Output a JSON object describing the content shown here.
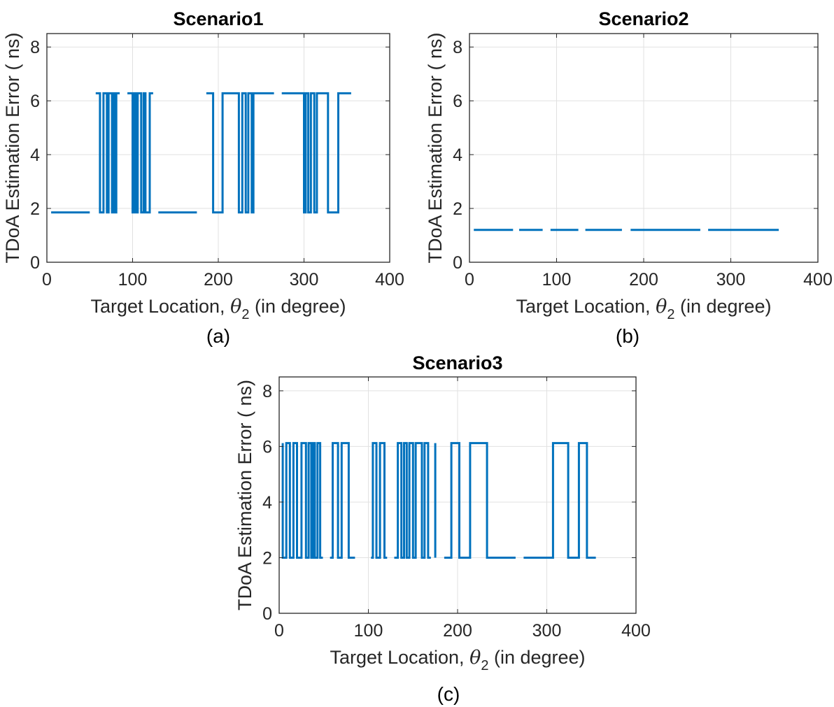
{
  "chart_data": [
    {
      "type": "line",
      "title": "Scenario1",
      "xlabel_prefix": "Target Location, ",
      "xlabel_symbol": "θ",
      "xlabel_subscript": "2",
      "xlabel_suffix": " (in degree)",
      "ylabel": "TDoA Estimation Error ( ns)",
      "panel_label": "(a)",
      "xlim": [
        0,
        400
      ],
      "ylim": [
        0,
        8.5
      ],
      "xticks": [
        0,
        100,
        200,
        300,
        400
      ],
      "yticks": [
        0,
        2,
        4,
        6,
        8
      ],
      "grid": true,
      "series": [
        {
          "color": "#0072BD",
          "segments": [
            [
              [
                5,
                1.85
              ],
              [
                50,
                1.85
              ]
            ],
            [
              [
                57,
                6.28
              ],
              [
                62,
                6.28
              ],
              [
                62,
                1.85
              ],
              [
                66,
                1.85
              ],
              [
                66,
                6.28
              ],
              [
                70,
                6.28
              ],
              [
                70,
                1.85
              ],
              [
                72,
                1.85
              ],
              [
                72,
                6.28
              ],
              [
                76,
                6.28
              ],
              [
                76,
                1.85
              ],
              [
                78,
                1.85
              ],
              [
                78,
                6.28
              ],
              [
                80,
                6.28
              ],
              [
                80,
                1.85
              ],
              [
                81,
                1.85
              ],
              [
                81,
                6.28
              ],
              [
                85,
                6.28
              ]
            ],
            [
              [
                94,
                6.28
              ],
              [
                100,
                6.28
              ],
              [
                100,
                1.85
              ],
              [
                102,
                1.85
              ],
              [
                102,
                6.28
              ],
              [
                104,
                6.28
              ],
              [
                104,
                1.85
              ],
              [
                106,
                1.85
              ],
              [
                106,
                6.28
              ],
              [
                110,
                6.28
              ],
              [
                110,
                1.85
              ],
              [
                113,
                1.85
              ],
              [
                113,
                6.28
              ],
              [
                115,
                6.28
              ],
              [
                115,
                1.85
              ],
              [
                120,
                1.85
              ],
              [
                120,
                6.28
              ],
              [
                124,
                6.28
              ]
            ],
            [
              [
                130,
                1.85
              ],
              [
                175,
                1.85
              ]
            ],
            [
              [
                186,
                6.28
              ],
              [
                194,
                6.28
              ],
              [
                194,
                1.85
              ],
              [
                205,
                1.85
              ],
              [
                205,
                6.28
              ],
              [
                224,
                6.28
              ],
              [
                224,
                1.85
              ],
              [
                228,
                1.85
              ],
              [
                228,
                6.28
              ],
              [
                232,
                6.28
              ],
              [
                232,
                1.85
              ],
              [
                235,
                1.85
              ],
              [
                235,
                6.28
              ],
              [
                239,
                6.28
              ],
              [
                239,
                1.85
              ],
              [
                241,
                1.85
              ],
              [
                241,
                6.28
              ],
              [
                265,
                6.28
              ]
            ],
            [
              [
                274,
                6.28
              ],
              [
                300,
                6.28
              ],
              [
                300,
                1.85
              ],
              [
                302,
                1.85
              ],
              [
                302,
                6.28
              ],
              [
                305,
                6.28
              ],
              [
                305,
                1.85
              ],
              [
                308,
                1.85
              ],
              [
                308,
                6.28
              ],
              [
                312,
                6.28
              ],
              [
                312,
                1.85
              ],
              [
                315,
                1.85
              ],
              [
                315,
                6.28
              ],
              [
                328,
                6.28
              ],
              [
                328,
                1.85
              ],
              [
                340,
                1.85
              ],
              [
                340,
                6.28
              ],
              [
                355,
                6.28
              ]
            ]
          ]
        }
      ]
    },
    {
      "type": "line",
      "title": "Scenario2",
      "xlabel_prefix": "Target Location, ",
      "xlabel_symbol": "θ",
      "xlabel_subscript": "2",
      "xlabel_suffix": " (in degree)",
      "ylabel": "TDoA Estimation Error ( ns)",
      "panel_label": "(b)",
      "xlim": [
        0,
        400
      ],
      "ylim": [
        0,
        8.5
      ],
      "xticks": [
        0,
        100,
        200,
        300,
        400
      ],
      "yticks": [
        0,
        2,
        4,
        6,
        8
      ],
      "grid": true,
      "series": [
        {
          "color": "#0072BD",
          "segments": [
            [
              [
                5,
                1.2
              ],
              [
                50,
                1.2
              ]
            ],
            [
              [
                57,
                1.2
              ],
              [
                84,
                1.2
              ]
            ],
            [
              [
                93,
                1.2
              ],
              [
                125,
                1.2
              ]
            ],
            [
              [
                133,
                1.2
              ],
              [
                175,
                1.2
              ]
            ],
            [
              [
                185,
                1.2
              ],
              [
                265,
                1.2
              ]
            ],
            [
              [
                274,
                1.2
              ],
              [
                355,
                1.2
              ]
            ]
          ]
        }
      ]
    },
    {
      "type": "line",
      "title": "Scenario3",
      "xlabel_prefix": "Target Location, ",
      "xlabel_symbol": "θ",
      "xlabel_subscript": "2",
      "xlabel_suffix": " (in degree)",
      "ylabel": "TDoA Estimation Error ( ns)",
      "panel_label": "(c)",
      "xlim": [
        0,
        400
      ],
      "ylim": [
        0,
        8.5
      ],
      "xticks": [
        0,
        100,
        200,
        300,
        400
      ],
      "yticks": [
        0,
        2,
        4,
        6,
        8
      ],
      "grid": true,
      "series": [
        {
          "color": "#0072BD",
          "segments": [
            [
              [
                4,
                6.12
              ],
              [
                4,
                2
              ],
              [
                8,
                2
              ],
              [
                8,
                6.12
              ],
              [
                12,
                6.12
              ],
              [
                12,
                2
              ],
              [
                16,
                2
              ],
              [
                16,
                6.12
              ],
              [
                20,
                6.12
              ],
              [
                20,
                2
              ],
              [
                25,
                2
              ],
              [
                25,
                6.12
              ],
              [
                30,
                6.12
              ],
              [
                30,
                2
              ],
              [
                33,
                2
              ],
              [
                33,
                6.12
              ],
              [
                36,
                6.12
              ],
              [
                36,
                2
              ],
              [
                38,
                2
              ],
              [
                38,
                6.12
              ],
              [
                40,
                6.12
              ],
              [
                40,
                2
              ],
              [
                43,
                2
              ],
              [
                43,
                6.12
              ],
              [
                46,
                6.12
              ],
              [
                46,
                2
              ],
              [
                49,
                2
              ]
            ],
            [
              [
                57,
                2
              ],
              [
                60,
                2
              ],
              [
                60,
                6.12
              ],
              [
                66,
                6.12
              ],
              [
                66,
                2
              ],
              [
                70,
                2
              ],
              [
                70,
                6.12
              ],
              [
                78,
                6.12
              ],
              [
                78,
                2
              ],
              [
                85,
                2
              ]
            ],
            [
              [
                103,
                2
              ],
              [
                105,
                2
              ],
              [
                105,
                6.12
              ],
              [
                109,
                6.12
              ],
              [
                109,
                2
              ],
              [
                113,
                2
              ],
              [
                113,
                6.12
              ],
              [
                118,
                6.12
              ],
              [
                118,
                2
              ],
              [
                121,
                2
              ]
            ],
            [
              [
                129,
                2
              ],
              [
                133,
                2
              ],
              [
                133,
                6.12
              ],
              [
                137,
                6.12
              ],
              [
                137,
                2
              ],
              [
                140,
                2
              ],
              [
                140,
                6.12
              ],
              [
                143,
                6.12
              ],
              [
                143,
                2
              ],
              [
                146,
                2
              ],
              [
                146,
                6.12
              ],
              [
                150,
                6.12
              ],
              [
                150,
                2
              ],
              [
                153,
                2
              ],
              [
                153,
                6.12
              ],
              [
                160,
                6.12
              ],
              [
                160,
                2
              ],
              [
                163,
                2
              ],
              [
                163,
                6.12
              ],
              [
                167,
                6.12
              ],
              [
                167,
                2
              ],
              [
                170,
                2
              ]
            ],
            [
              [
                175,
                2
              ],
              [
                175,
                6.12
              ]
            ],
            [
              [
                185,
                2
              ],
              [
                193,
                2
              ],
              [
                193,
                6.12
              ],
              [
                202,
                6.12
              ],
              [
                202,
                2
              ],
              [
                214,
                2
              ],
              [
                214,
                6.12
              ],
              [
                233,
                6.12
              ],
              [
                233,
                2
              ],
              [
                265,
                2
              ]
            ],
            [
              [
                274,
                2
              ],
              [
                307,
                2
              ],
              [
                307,
                6.12
              ],
              [
                324,
                6.12
              ],
              [
                324,
                2
              ],
              [
                336,
                2
              ],
              [
                336,
                6.12
              ],
              [
                345,
                6.12
              ],
              [
                345,
                2
              ],
              [
                355,
                2
              ]
            ]
          ]
        }
      ]
    }
  ]
}
